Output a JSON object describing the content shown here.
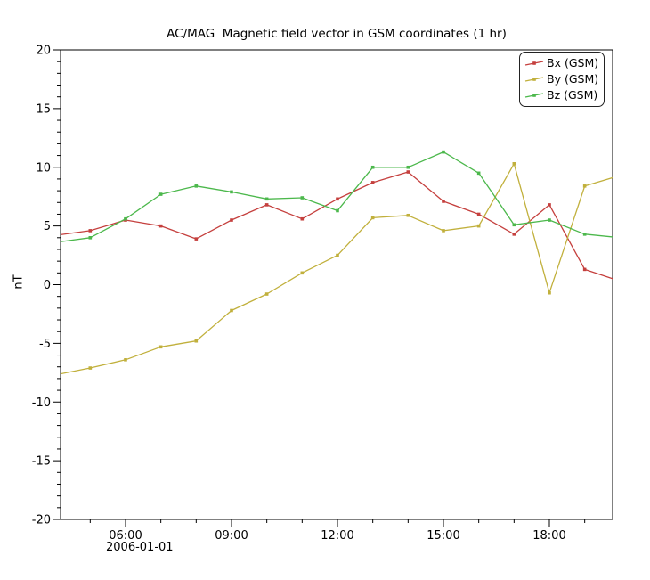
{
  "chart_data": {
    "type": "line",
    "title": "AC/MAG  Magnetic field vector in GSM coordinates (1 hr)",
    "ylabel": "nT",
    "xlabel_date": "2006-01-01",
    "grid": false,
    "legend_position": "top-right",
    "ylim": [
      -20,
      20
    ],
    "xlim_hours": [
      4.16,
      19.79
    ],
    "y_major_ticks": [
      -20,
      -15,
      -10,
      -5,
      0,
      5,
      10,
      15,
      20
    ],
    "y_minor_step": 1,
    "x_minor_ticks_hours": [
      5,
      6,
      7,
      8,
      9,
      10,
      11,
      12,
      13,
      14,
      15,
      16,
      17,
      18,
      19
    ],
    "x_major_ticks_hours": [
      6,
      9,
      12,
      15,
      18
    ],
    "x_major_tick_labels": [
      "06:00",
      "09:00",
      "12:00",
      "15:00",
      "18:00"
    ],
    "x_hours": [
      4,
      5,
      6,
      7,
      8,
      9,
      10,
      11,
      12,
      13,
      14,
      15,
      16,
      17,
      18,
      19,
      20
    ],
    "series": [
      {
        "name": "Bx (GSM)",
        "color": "#c5403e",
        "values": [
          4.2,
          4.6,
          5.5,
          5.0,
          3.9,
          5.5,
          6.8,
          5.6,
          7.3,
          8.7,
          9.6,
          7.1,
          6.0,
          4.3,
          6.8,
          1.3,
          0.3
        ]
      },
      {
        "name": "By (GSM)",
        "color": "#c1b03c",
        "values": [
          -7.7,
          -7.1,
          -6.4,
          -5.3,
          -4.8,
          -2.2,
          -0.8,
          1.0,
          2.5,
          5.7,
          5.9,
          4.6,
          5.0,
          10.3,
          -0.7,
          8.4,
          9.3
        ]
      },
      {
        "name": "Bz (GSM)",
        "color": "#4cb84c",
        "values": [
          3.6,
          4.0,
          5.6,
          7.7,
          8.4,
          7.9,
          7.3,
          7.4,
          6.3,
          10.0,
          10.0,
          11.3,
          9.5,
          5.1,
          5.5,
          4.3,
          4.0
        ]
      }
    ]
  }
}
